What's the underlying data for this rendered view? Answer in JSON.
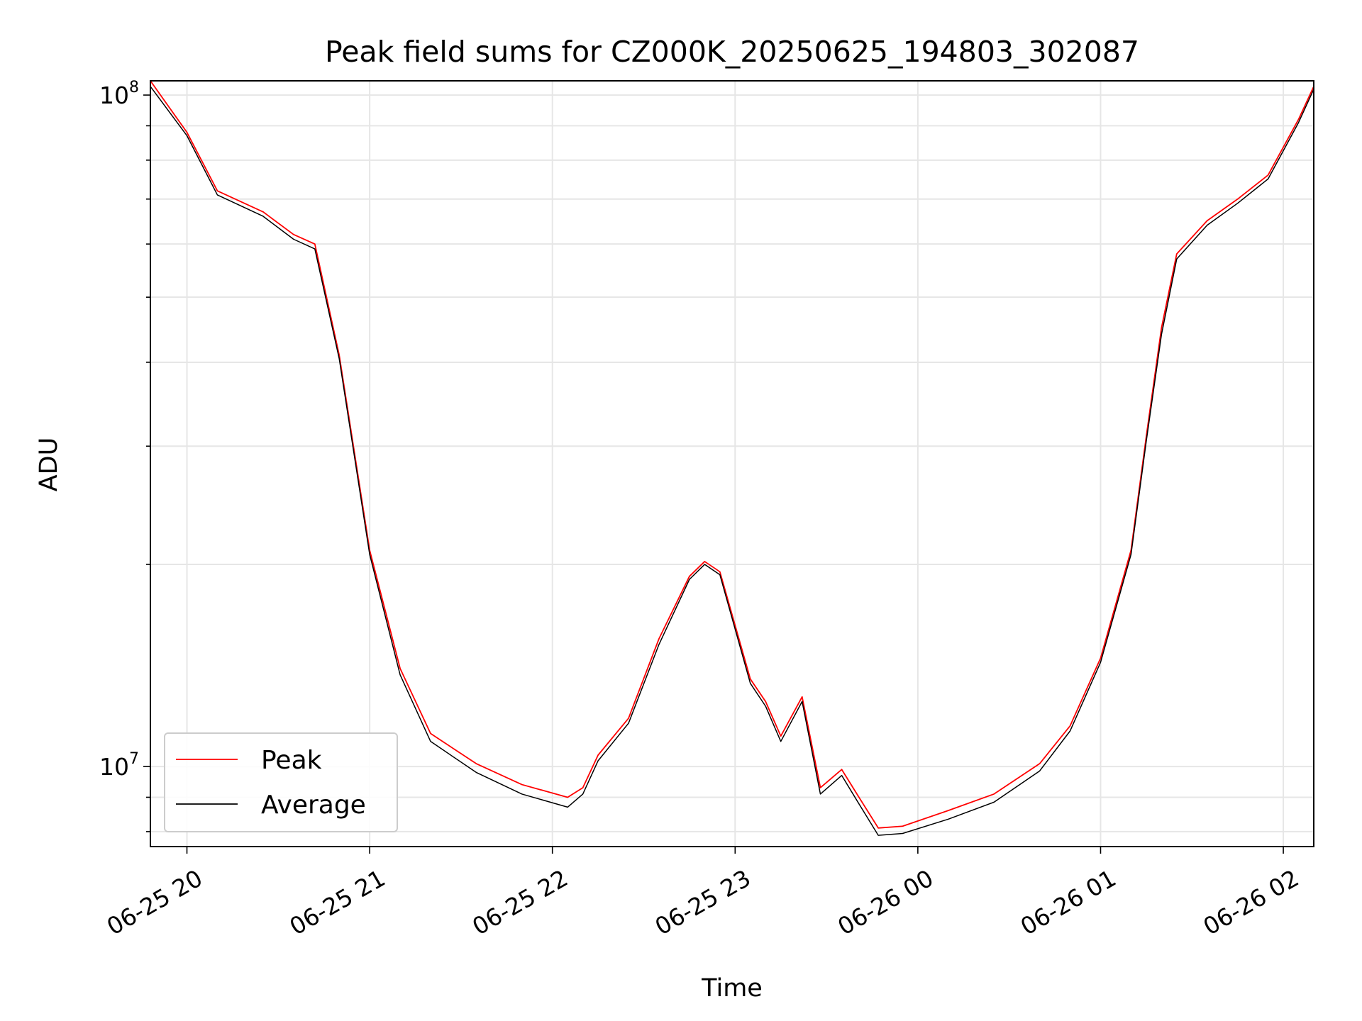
{
  "chart_data": {
    "type": "line",
    "title": "Peak field sums for CZ000K_20250625_194803_302087",
    "xlabel": "Time",
    "ylabel": "ADU",
    "yscale": "log",
    "xlim": [
      "2025-06-25 19:48",
      "2025-06-26 02:10"
    ],
    "ylim": [
      7600000,
      105000000
    ],
    "grid": true,
    "legend_position": "lower-left",
    "x_ticks": [
      {
        "value": "2025-06-25 20:00",
        "label": "06-25 20"
      },
      {
        "value": "2025-06-25 21:00",
        "label": "06-25 21"
      },
      {
        "value": "2025-06-25 22:00",
        "label": "06-25 22"
      },
      {
        "value": "2025-06-25 23:00",
        "label": "06-25 23"
      },
      {
        "value": "2025-06-26 00:00",
        "label": "06-26 00"
      },
      {
        "value": "2025-06-26 01:00",
        "label": "06-26 01"
      },
      {
        "value": "2025-06-26 02:00",
        "label": "06-26 02"
      }
    ],
    "y_ticks": [
      {
        "value": 10000000,
        "base": "10",
        "exp": "7"
      },
      {
        "value": 100000000,
        "base": "10",
        "exp": "8"
      }
    ],
    "series": [
      {
        "name": "Peak",
        "color": "#ff0000",
        "x": [
          "2025-06-25 19:48",
          "2025-06-25 20:00",
          "2025-06-25 20:10",
          "2025-06-25 20:25",
          "2025-06-25 20:35",
          "2025-06-25 20:42",
          "2025-06-25 20:50",
          "2025-06-25 21:00",
          "2025-06-25 21:10",
          "2025-06-25 21:20",
          "2025-06-25 21:35",
          "2025-06-25 21:50",
          "2025-06-25 22:05",
          "2025-06-25 22:10",
          "2025-06-25 22:15",
          "2025-06-25 22:25",
          "2025-06-25 22:35",
          "2025-06-25 22:45",
          "2025-06-25 22:50",
          "2025-06-25 22:55",
          "2025-06-25 23:05",
          "2025-06-25 23:10",
          "2025-06-25 23:15",
          "2025-06-25 23:22",
          "2025-06-25 23:28",
          "2025-06-25 23:35",
          "2025-06-25 23:40",
          "2025-06-25 23:47",
          "2025-06-25 23:55",
          "2025-06-26 00:10",
          "2025-06-26 00:25",
          "2025-06-26 00:40",
          "2025-06-26 00:50",
          "2025-06-26 01:00",
          "2025-06-26 01:10",
          "2025-06-26 01:15",
          "2025-06-26 01:20",
          "2025-06-26 01:25",
          "2025-06-26 01:35",
          "2025-06-26 01:45",
          "2025-06-26 01:55",
          "2025-06-26 02:05",
          "2025-06-26 02:10"
        ],
        "y": [
          105000000,
          88000000,
          72000000,
          67000000,
          62000000,
          60000000,
          41000000,
          21000000,
          14000000,
          11200000,
          10100000,
          9400000,
          9000000,
          9300000,
          10400000,
          11800000,
          15500000,
          19200000,
          20200000,
          19500000,
          13500000,
          12500000,
          11100000,
          12700000,
          9300000,
          9900000,
          9100000,
          8100000,
          8150000,
          8600000,
          9100000,
          10100000,
          11500000,
          14500000,
          21000000,
          31000000,
          45000000,
          58000000,
          65000000,
          70000000,
          76000000,
          92000000,
          103000000
        ]
      },
      {
        "name": "Average",
        "color": "#000000",
        "x": [
          "2025-06-25 19:48",
          "2025-06-25 20:00",
          "2025-06-25 20:10",
          "2025-06-25 20:25",
          "2025-06-25 20:35",
          "2025-06-25 20:42",
          "2025-06-25 20:50",
          "2025-06-25 21:00",
          "2025-06-25 21:10",
          "2025-06-25 21:20",
          "2025-06-25 21:35",
          "2025-06-25 21:50",
          "2025-06-25 22:05",
          "2025-06-25 22:10",
          "2025-06-25 22:15",
          "2025-06-25 22:25",
          "2025-06-25 22:35",
          "2025-06-25 22:45",
          "2025-06-25 22:50",
          "2025-06-25 22:55",
          "2025-06-25 23:05",
          "2025-06-25 23:10",
          "2025-06-25 23:15",
          "2025-06-25 23:22",
          "2025-06-25 23:28",
          "2025-06-25 23:35",
          "2025-06-25 23:40",
          "2025-06-25 23:47",
          "2025-06-25 23:55",
          "2025-06-26 00:10",
          "2025-06-26 00:25",
          "2025-06-26 00:40",
          "2025-06-26 00:50",
          "2025-06-26 01:00",
          "2025-06-26 01:10",
          "2025-06-26 01:15",
          "2025-06-26 01:20",
          "2025-06-26 01:25",
          "2025-06-26 01:35",
          "2025-06-26 01:45",
          "2025-06-26 01:55",
          "2025-06-26 02:05",
          "2025-06-26 02:10"
        ],
        "y": [
          103000000,
          87000000,
          71000000,
          66000000,
          61000000,
          59000000,
          40500000,
          20700000,
          13700000,
          10900000,
          9800000,
          9100000,
          8700000,
          9100000,
          10200000,
          11600000,
          15200000,
          19000000,
          20000000,
          19300000,
          13300000,
          12300000,
          10900000,
          12500000,
          9100000,
          9700000,
          8900000,
          7900000,
          7950000,
          8350000,
          8850000,
          9850000,
          11300000,
          14300000,
          20700000,
          30500000,
          44000000,
          57000000,
          64000000,
          69000000,
          75000000,
          91000000,
          102000000
        ]
      }
    ]
  }
}
